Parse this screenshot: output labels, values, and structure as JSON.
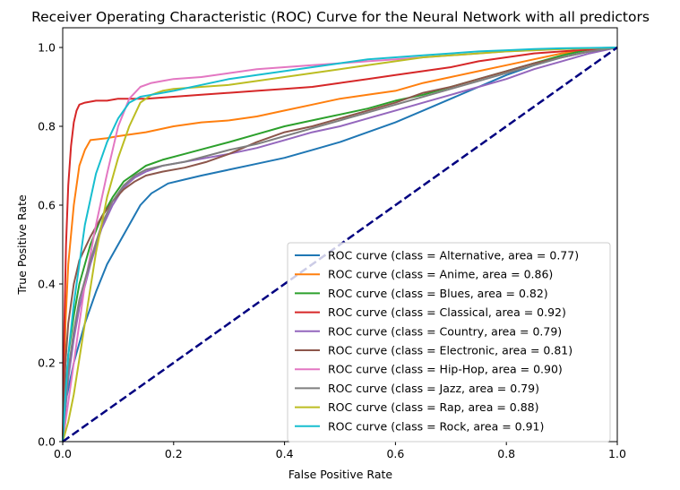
{
  "chart_data": {
    "type": "line",
    "title": "Receiver Operating Characteristic (ROC) Curve for the Neural Network with all predictors",
    "xlabel": "False Positive Rate",
    "ylabel": "True Positive Rate",
    "xlim": [
      0.0,
      1.0
    ],
    "ylim": [
      0.0,
      1.05
    ],
    "xticks": [
      "0.0",
      "0.2",
      "0.4",
      "0.6",
      "0.8",
      "1.0"
    ],
    "yticks": [
      "0.0",
      "0.2",
      "0.4",
      "0.6",
      "0.8",
      "1.0"
    ],
    "grid": false,
    "legend_position": "lower right",
    "diagonal": {
      "x": [
        0,
        1
      ],
      "y": [
        0,
        1
      ],
      "color": "#000080",
      "style": "dashed"
    },
    "series": [
      {
        "name": "ROC curve (class = Alternative, area = 0.77)",
        "color": "#1f77b4",
        "x": [
          0,
          0.005,
          0.02,
          0.04,
          0.06,
          0.08,
          0.1,
          0.12,
          0.14,
          0.16,
          0.19,
          0.22,
          0.25,
          0.3,
          0.35,
          0.4,
          0.45,
          0.5,
          0.55,
          0.6,
          0.65,
          0.7,
          0.75,
          0.8,
          0.85,
          0.9,
          0.95,
          1.0
        ],
        "y": [
          0,
          0.1,
          0.2,
          0.3,
          0.38,
          0.45,
          0.5,
          0.55,
          0.6,
          0.63,
          0.655,
          0.665,
          0.675,
          0.69,
          0.705,
          0.72,
          0.74,
          0.76,
          0.785,
          0.81,
          0.84,
          0.87,
          0.9,
          0.93,
          0.955,
          0.975,
          0.99,
          1.0
        ]
      },
      {
        "name": "ROC curve (class = Anime, area = 0.86)",
        "color": "#ff7f0e",
        "x": [
          0,
          0.005,
          0.01,
          0.02,
          0.03,
          0.04,
          0.05,
          0.08,
          0.1,
          0.15,
          0.2,
          0.25,
          0.3,
          0.35,
          0.4,
          0.45,
          0.5,
          0.55,
          0.6,
          0.65,
          0.7,
          0.75,
          0.8,
          0.85,
          0.9,
          0.95,
          1.0
        ],
        "y": [
          0,
          0.3,
          0.45,
          0.6,
          0.7,
          0.74,
          0.765,
          0.77,
          0.775,
          0.785,
          0.8,
          0.81,
          0.815,
          0.825,
          0.84,
          0.855,
          0.87,
          0.88,
          0.89,
          0.91,
          0.925,
          0.94,
          0.955,
          0.97,
          0.985,
          0.995,
          1.0
        ]
      },
      {
        "name": "ROC curve (class = Blues, area = 0.82)",
        "color": "#2ca02c",
        "x": [
          0,
          0.005,
          0.01,
          0.02,
          0.03,
          0.05,
          0.07,
          0.09,
          0.11,
          0.13,
          0.15,
          0.18,
          0.22,
          0.26,
          0.3,
          0.35,
          0.4,
          0.45,
          0.5,
          0.55,
          0.6,
          0.65,
          0.7,
          0.75,
          0.8,
          0.85,
          0.9,
          0.95,
          1.0
        ],
        "y": [
          0,
          0.12,
          0.22,
          0.32,
          0.4,
          0.5,
          0.57,
          0.62,
          0.66,
          0.68,
          0.7,
          0.715,
          0.73,
          0.745,
          0.76,
          0.78,
          0.8,
          0.815,
          0.83,
          0.845,
          0.865,
          0.88,
          0.9,
          0.92,
          0.94,
          0.96,
          0.98,
          0.995,
          1.0
        ]
      },
      {
        "name": "ROC curve (class = Classical, area = 0.92)",
        "color": "#d62728",
        "x": [
          0,
          0.003,
          0.006,
          0.01,
          0.015,
          0.02,
          0.025,
          0.03,
          0.04,
          0.06,
          0.08,
          0.1,
          0.15,
          0.2,
          0.25,
          0.3,
          0.35,
          0.4,
          0.45,
          0.5,
          0.55,
          0.6,
          0.65,
          0.7,
          0.75,
          0.8,
          0.85,
          0.9,
          0.95,
          1.0
        ],
        "y": [
          0,
          0.3,
          0.5,
          0.65,
          0.75,
          0.81,
          0.84,
          0.855,
          0.86,
          0.865,
          0.865,
          0.87,
          0.87,
          0.875,
          0.88,
          0.885,
          0.89,
          0.895,
          0.9,
          0.91,
          0.92,
          0.93,
          0.94,
          0.95,
          0.965,
          0.975,
          0.985,
          0.99,
          0.995,
          1.0
        ]
      },
      {
        "name": "ROC curve (class = Country, area = 0.79)",
        "color": "#9467bd",
        "x": [
          0,
          0.005,
          0.01,
          0.02,
          0.03,
          0.05,
          0.07,
          0.09,
          0.11,
          0.13,
          0.15,
          0.18,
          0.22,
          0.26,
          0.3,
          0.35,
          0.4,
          0.45,
          0.5,
          0.55,
          0.6,
          0.65,
          0.7,
          0.75,
          0.8,
          0.85,
          0.9,
          0.95,
          1.0
        ],
        "y": [
          0,
          0.08,
          0.16,
          0.26,
          0.34,
          0.45,
          0.54,
          0.6,
          0.645,
          0.67,
          0.685,
          0.7,
          0.71,
          0.72,
          0.73,
          0.745,
          0.765,
          0.785,
          0.8,
          0.82,
          0.84,
          0.86,
          0.88,
          0.9,
          0.92,
          0.945,
          0.965,
          0.985,
          1.0
        ]
      },
      {
        "name": "ROC curve (class = Electronic, area = 0.81)",
        "color": "#8c564b",
        "x": [
          0,
          0.005,
          0.01,
          0.02,
          0.03,
          0.05,
          0.07,
          0.09,
          0.11,
          0.13,
          0.15,
          0.18,
          0.22,
          0.26,
          0.3,
          0.35,
          0.4,
          0.45,
          0.5,
          0.55,
          0.6,
          0.65,
          0.7,
          0.75,
          0.8,
          0.85,
          0.9,
          0.95,
          1.0
        ],
        "y": [
          0,
          0.2,
          0.3,
          0.4,
          0.46,
          0.52,
          0.57,
          0.61,
          0.64,
          0.66,
          0.675,
          0.685,
          0.695,
          0.71,
          0.73,
          0.76,
          0.785,
          0.8,
          0.82,
          0.84,
          0.86,
          0.885,
          0.9,
          0.92,
          0.94,
          0.96,
          0.975,
          0.99,
          1.0
        ]
      },
      {
        "name": "ROC curve (class = Hip-Hop, area = 0.90)",
        "color": "#e377c2",
        "x": [
          0,
          0.01,
          0.02,
          0.04,
          0.06,
          0.08,
          0.1,
          0.12,
          0.14,
          0.16,
          0.18,
          0.2,
          0.25,
          0.3,
          0.35,
          0.4,
          0.45,
          0.5,
          0.55,
          0.6,
          0.65,
          0.7,
          0.75,
          0.8,
          0.85,
          0.9,
          0.95,
          1.0
        ],
        "y": [
          0,
          0.1,
          0.2,
          0.4,
          0.55,
          0.68,
          0.8,
          0.87,
          0.9,
          0.91,
          0.915,
          0.92,
          0.925,
          0.935,
          0.945,
          0.95,
          0.955,
          0.96,
          0.965,
          0.97,
          0.975,
          0.98,
          0.985,
          0.99,
          0.993,
          0.996,
          0.998,
          1.0
        ]
      },
      {
        "name": "ROC curve (class = Jazz, area = 0.79)",
        "color": "#7f7f7f",
        "x": [
          0,
          0.005,
          0.01,
          0.02,
          0.03,
          0.05,
          0.07,
          0.09,
          0.11,
          0.13,
          0.15,
          0.18,
          0.22,
          0.26,
          0.3,
          0.35,
          0.4,
          0.45,
          0.5,
          0.55,
          0.6,
          0.65,
          0.7,
          0.75,
          0.8,
          0.85,
          0.9,
          0.95,
          1.0
        ],
        "y": [
          0,
          0.1,
          0.18,
          0.28,
          0.36,
          0.46,
          0.55,
          0.61,
          0.65,
          0.675,
          0.69,
          0.7,
          0.71,
          0.725,
          0.74,
          0.755,
          0.775,
          0.795,
          0.815,
          0.835,
          0.855,
          0.875,
          0.895,
          0.915,
          0.935,
          0.955,
          0.975,
          0.99,
          1.0
        ]
      },
      {
        "name": "ROC curve (class = Rap, area = 0.88)",
        "color": "#bcbd22",
        "x": [
          0,
          0.01,
          0.02,
          0.04,
          0.06,
          0.08,
          0.1,
          0.12,
          0.14,
          0.16,
          0.18,
          0.2,
          0.25,
          0.3,
          0.35,
          0.4,
          0.45,
          0.5,
          0.55,
          0.6,
          0.65,
          0.7,
          0.75,
          0.8,
          0.85,
          0.9,
          0.95,
          1.0
        ],
        "y": [
          0,
          0.05,
          0.12,
          0.3,
          0.48,
          0.62,
          0.72,
          0.8,
          0.86,
          0.88,
          0.89,
          0.895,
          0.9,
          0.905,
          0.915,
          0.925,
          0.935,
          0.945,
          0.955,
          0.965,
          0.975,
          0.98,
          0.985,
          0.99,
          0.993,
          0.996,
          0.998,
          1.0
        ]
      },
      {
        "name": "ROC curve (class = Rock, area = 0.91)",
        "color": "#17becf",
        "x": [
          0,
          0.005,
          0.01,
          0.02,
          0.04,
          0.06,
          0.08,
          0.1,
          0.12,
          0.14,
          0.16,
          0.18,
          0.2,
          0.25,
          0.3,
          0.35,
          0.4,
          0.45,
          0.5,
          0.55,
          0.6,
          0.65,
          0.7,
          0.75,
          0.8,
          0.85,
          0.9,
          0.95,
          1.0
        ],
        "y": [
          0,
          0.12,
          0.22,
          0.35,
          0.55,
          0.68,
          0.76,
          0.82,
          0.86,
          0.875,
          0.88,
          0.885,
          0.89,
          0.905,
          0.92,
          0.93,
          0.94,
          0.95,
          0.96,
          0.97,
          0.975,
          0.98,
          0.985,
          0.99,
          0.993,
          0.996,
          0.998,
          0.999,
          1.0
        ]
      }
    ]
  }
}
